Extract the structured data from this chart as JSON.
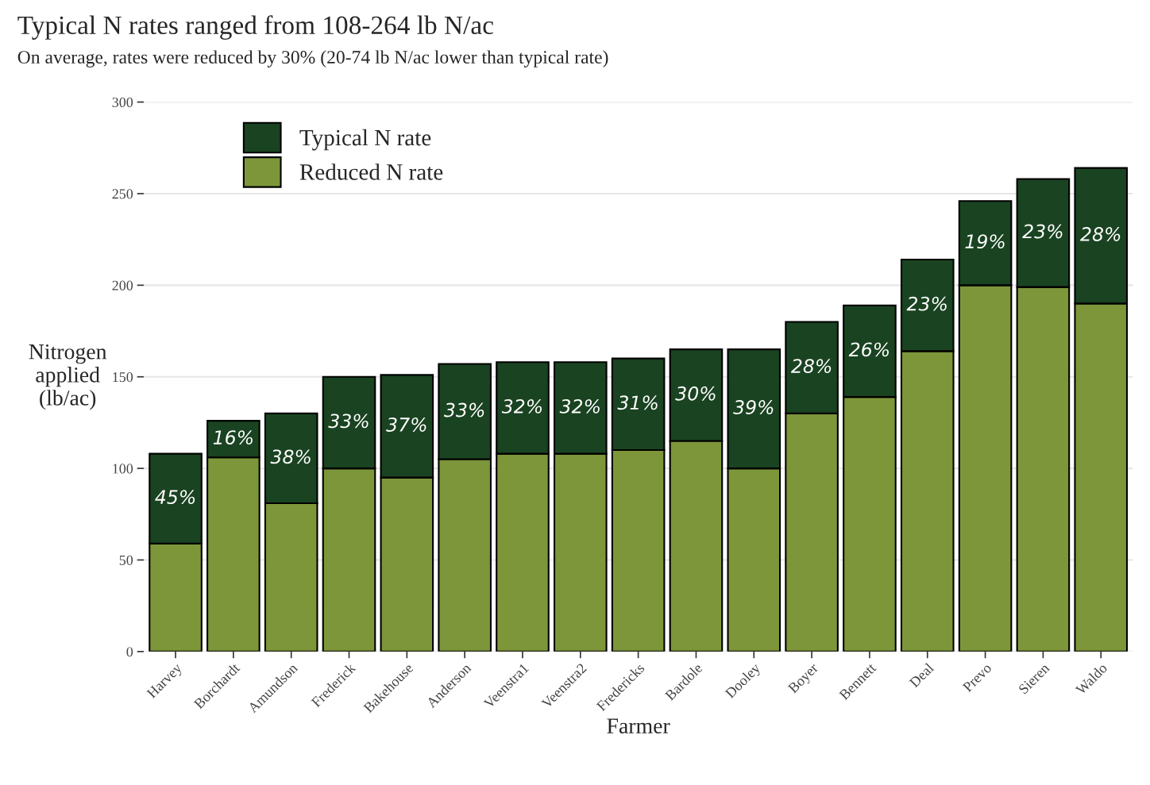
{
  "chart_data": {
    "type": "bar",
    "title": "Typical N rates ranged from 108-264 lb N/ac",
    "subtitle": "On average, rates were reduced by 30% (20-74 lb N/ac lower than typical rate)",
    "xlabel": "Farmer",
    "ylabel": "Nitrogen\napplied\n(lb/ac)",
    "categories": [
      "Harvey",
      "Borchardt",
      "Amundson",
      "Frederick",
      "Bakehouse",
      "Anderson",
      "Veenstra1",
      "Veenstra2",
      "Fredericks",
      "Bardole",
      "Dooley",
      "Boyer",
      "Bennett",
      "Deal",
      "Prevo",
      "Sieren",
      "Waldo"
    ],
    "stacked": true,
    "series": [
      {
        "name": "Reduced N rate",
        "color": "#7d963a",
        "values": [
          59,
          106,
          81,
          100,
          95,
          105,
          108,
          108,
          110,
          115,
          100,
          130,
          139,
          164,
          200,
          199,
          190
        ]
      },
      {
        "name": "Typical N rate",
        "color": "#1a4321",
        "values": [
          49,
          20,
          49,
          50,
          56,
          52,
          50,
          50,
          50,
          50,
          65,
          50,
          50,
          50,
          46,
          59,
          74
        ]
      }
    ],
    "annotations": [
      "45%",
      "16%",
      "38%",
      "33%",
      "37%",
      "33%",
      "32%",
      "32%",
      "31%",
      "30%",
      "39%",
      "28%",
      "26%",
      "23%",
      "19%",
      "23%",
      "28%"
    ],
    "ylim": [
      0,
      300
    ],
    "yticks": [
      0,
      50,
      100,
      150,
      200,
      250,
      300
    ],
    "grid": "y",
    "legend": "top left"
  }
}
